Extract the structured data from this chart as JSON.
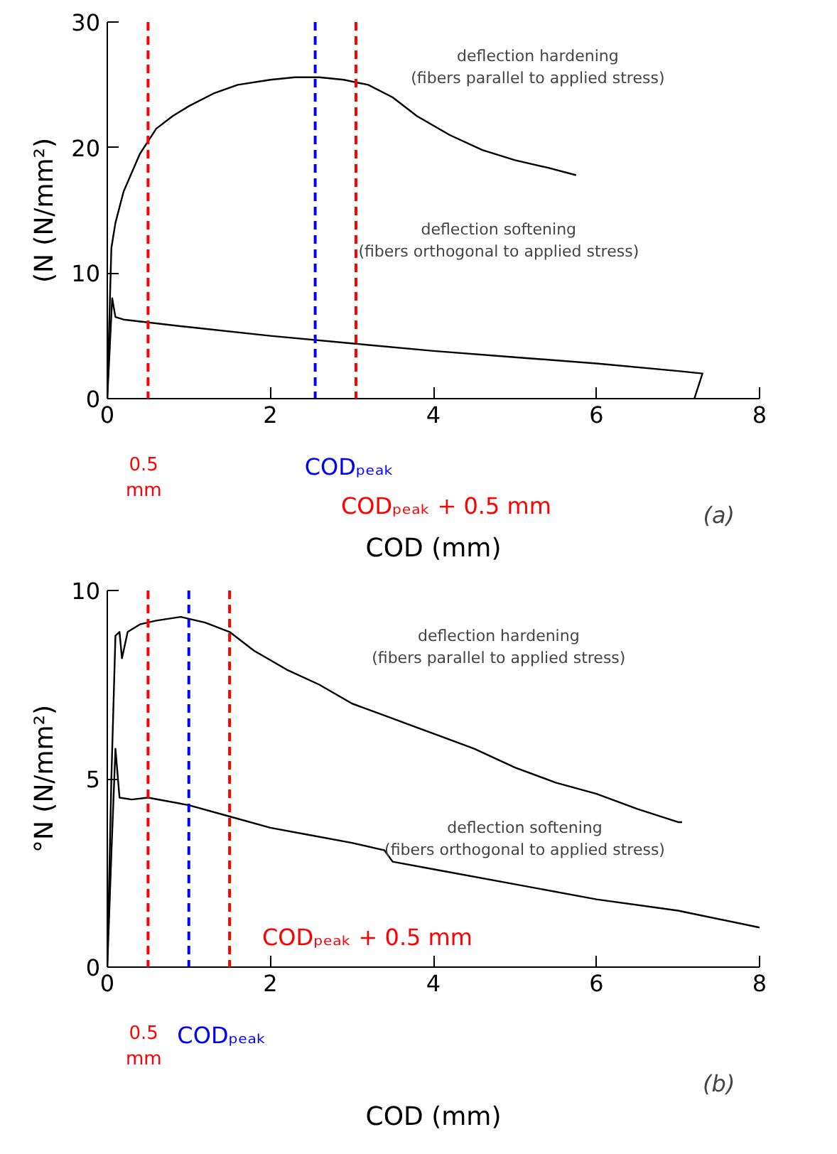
{
  "chart_data": [
    {
      "type": "line",
      "xlabel": "COD (mm)",
      "ylabel": "(N (N/mm²)",
      "xlim": [
        0,
        8
      ],
      "ylim": [
        0,
        30
      ],
      "xticks": [
        0,
        2,
        4,
        6,
        8
      ],
      "yticks": [
        0,
        10,
        20,
        30
      ],
      "grid": false,
      "marker": "none",
      "line_style": "solid",
      "series": [
        {
          "color": "#000000",
          "x": [
            0,
            0.02,
            0.05,
            0.1,
            0.2,
            0.4,
            0.6,
            0.8,
            1.0,
            1.3,
            1.6,
            2.0,
            2.3,
            2.6,
            2.9,
            3.2,
            3.5,
            3.8,
            4.2,
            4.6,
            5.0,
            5.4,
            5.75
          ],
          "values": [
            0,
            5,
            12,
            14,
            16.5,
            19.5,
            21.5,
            22.5,
            23.3,
            24.3,
            25,
            25.4,
            25.6,
            25.6,
            25.4,
            25,
            24,
            22.5,
            21,
            19.8,
            19,
            18.4,
            17.8
          ]
        },
        {
          "color": "#000000",
          "x": [
            0,
            0.03,
            0.06,
            0.1,
            0.2,
            1,
            2,
            3,
            4,
            5,
            6,
            7,
            7.3,
            7.2
          ],
          "values": [
            0,
            4,
            8,
            6.5,
            6.3,
            5.7,
            5.0,
            4.4,
            3.8,
            3.3,
            2.8,
            2.2,
            2.0,
            0
          ]
        }
      ],
      "ref_lines": [
        {
          "axis": "x",
          "value": 0.5,
          "label": "0.5\nmm",
          "color": "#ff0000",
          "line_style": "dashed"
        },
        {
          "axis": "x",
          "value": 2.55,
          "label": "CODₚₑₐₖ",
          "color": "#0000ff",
          "line_style": "dashed"
        },
        {
          "axis": "x",
          "value": 3.05,
          "label": "CODₚₑₐₖ + 0.5 mm",
          "color": "#ff0000",
          "line_style": "dashed"
        }
      ],
      "annotations": [
        "deflection hardening\n(fibers parallel to applied stress)",
        "deflection softening\n(fibers orthogonal to applied stress)",
        "(a)"
      ]
    },
    {
      "type": "line",
      "xlabel": "COD (mm)",
      "ylabel": "°N (N/mm²)",
      "xlim": [
        0,
        8
      ],
      "ylim": [
        0,
        10
      ],
      "xticks": [
        0,
        2,
        4,
        6,
        8
      ],
      "yticks": [
        0,
        5,
        10
      ],
      "grid": false,
      "marker": "none",
      "line_style": "solid",
      "series": [
        {
          "color": "#000000",
          "x": [
            0,
            0.05,
            0.1,
            0.15,
            0.18,
            0.25,
            0.4,
            0.6,
            0.9,
            1.2,
            1.5,
            1.8,
            2.2,
            2.6,
            3,
            3.5,
            4,
            4.5,
            5,
            5.5,
            6,
            6.5,
            7,
            7.05
          ],
          "values": [
            0,
            5,
            8.8,
            8.9,
            8.2,
            8.9,
            9.1,
            9.2,
            9.3,
            9.15,
            8.9,
            8.4,
            7.9,
            7.5,
            7.0,
            6.6,
            6.2,
            5.8,
            5.3,
            4.9,
            4.6,
            4.2,
            3.85,
            3.85
          ]
        },
        {
          "color": "#000000",
          "x": [
            0,
            0.05,
            0.1,
            0.15,
            0.3,
            0.5,
            1,
            1.5,
            2,
            2.5,
            3,
            3.4,
            3.5,
            4,
            5,
            6,
            7,
            8
          ],
          "values": [
            0,
            3,
            5.8,
            4.5,
            4.45,
            4.5,
            4.3,
            4.0,
            3.7,
            3.5,
            3.3,
            3.1,
            2.8,
            2.6,
            2.2,
            1.8,
            1.5,
            1.05
          ]
        }
      ],
      "ref_lines": [
        {
          "axis": "x",
          "value": 0.5,
          "label": "0.5\nmm",
          "color": "#ff0000",
          "line_style": "dashed"
        },
        {
          "axis": "x",
          "value": 1.0,
          "label": "CODₚₑₐₖ",
          "color": "#0000ff",
          "line_style": "dashed"
        },
        {
          "axis": "x",
          "value": 1.5,
          "label": "CODₚₑₐₖ + 0.5 mm",
          "color": "#ff0000",
          "line_style": "dashed"
        }
      ],
      "annotations": [
        "deflection hardening\n(fibers parallel to applied stress)",
        "deflection softening\n(fibers orthogonal to applied stress)",
        "(b)"
      ]
    }
  ]
}
